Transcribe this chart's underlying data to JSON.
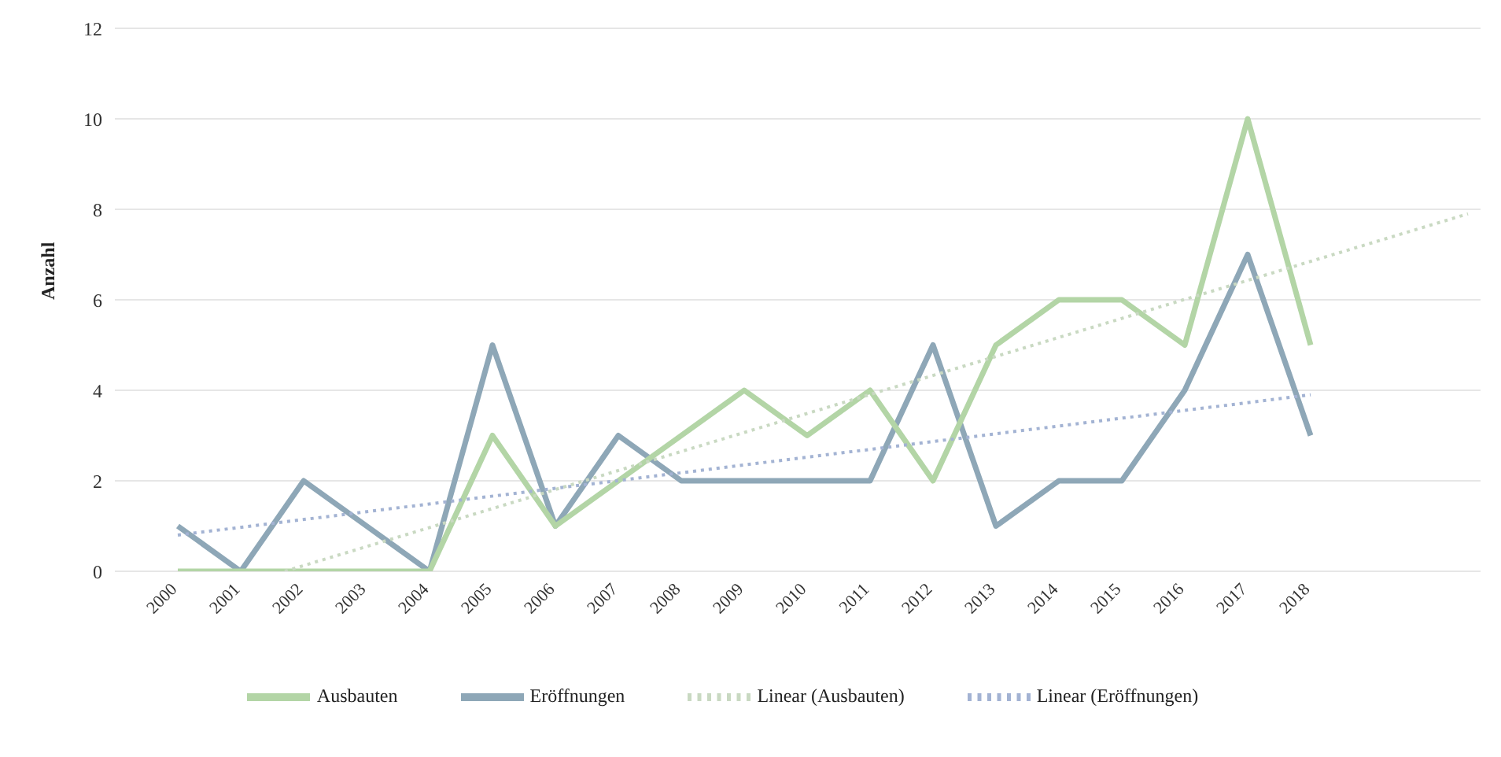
{
  "chart_data": {
    "type": "line",
    "ylabel": "Anzahl",
    "x": [
      2000,
      2001,
      2002,
      2003,
      2004,
      2005,
      2006,
      2007,
      2008,
      2009,
      2010,
      2011,
      2012,
      2013,
      2014,
      2015,
      2016,
      2017,
      2018
    ],
    "xlim": [
      1999,
      2020.7
    ],
    "xticks": [
      2000,
      2001,
      2002,
      2003,
      2004,
      2005,
      2006,
      2007,
      2008,
      2009,
      2010,
      2011,
      2012,
      2013,
      2014,
      2015,
      2016,
      2017,
      2018
    ],
    "ylim": [
      0,
      12
    ],
    "yticks": [
      0,
      2,
      4,
      6,
      8,
      10,
      12
    ],
    "grid": "y",
    "legend": "bottom",
    "marker": "none",
    "series": [
      {
        "name": "Eröffnungen",
        "color": "#8ea7b7",
        "values": [
          1,
          0,
          2,
          1,
          0,
          5,
          1,
          3,
          2,
          2,
          2,
          2,
          5,
          1,
          2,
          2,
          4,
          7,
          3
        ]
      },
      {
        "name": "Ausbauten",
        "color": "#b3d5a6",
        "values": [
          0,
          0,
          0,
          0,
          0,
          3,
          1,
          2,
          3,
          4,
          3,
          4,
          2,
          5,
          6,
          6,
          5,
          10,
          5
        ]
      },
      {
        "name": "Linear (Eröffnungen)",
        "color": "#a3b3d3",
        "line_style": "dotted",
        "x": [
          2000,
          2018
        ],
        "values": [
          0.8,
          3.9
        ]
      },
      {
        "name": "Linear (Ausbauten)",
        "color": "#c9d9c2",
        "line_style": "dotted",
        "x": [
          2001.7,
          2020.5
        ],
        "values": [
          0,
          7.9
        ]
      }
    ]
  }
}
